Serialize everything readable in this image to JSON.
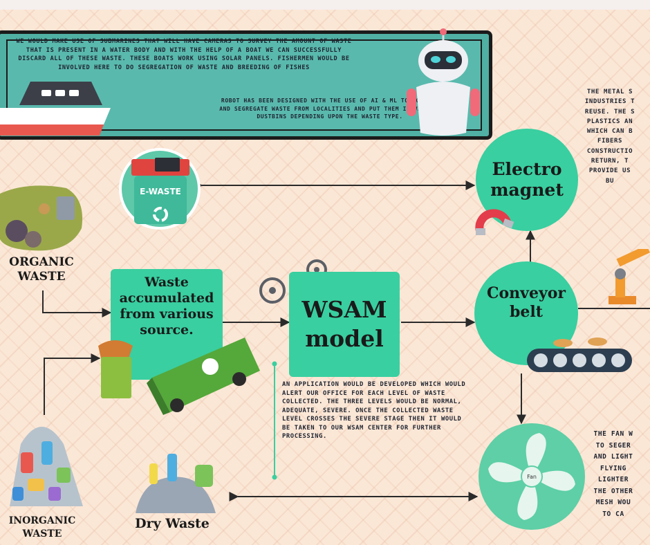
{
  "banner": {
    "boat_text": "WE WOULD MAKE USE OF SUBMARINES THAT WILL HAVE CAMERAS TO SURVEY THE AMOUNT OF WASTE THAT IS PRESENT IN A WATER BODY AND WITH THE HELP OF A BOAT WE CAN SUCCESSFULLY DISCARD ALL OF THESE WASTE. THESE BOATS WORK USING SOLAR PANELS. FISHERMEN WOULD BE INVOLVED HERE TO DO SEGREGATION OF WASTE AND BREEDING OF FISHES",
    "robot_text": "ROBOT HAS BEEN DESIGNED WITH THE USE OF AI & ML TO COLLECT AND SEGREGATE WASTE FROM LOCALITIES AND PUT THEM IN VARIOUS DUSTBINS DEPENDING UPON THE WASTE TYPE."
  },
  "nodes": {
    "ewaste_label": "E-WASTE",
    "electromagnet": "Electro magnet",
    "conveyor": "Conveyor belt",
    "wsam": "WSAM model",
    "accumulated": "Waste accumulated from various source.",
    "fan_label": "Fan"
  },
  "labels": {
    "organic": "ORGANIC WASTE",
    "inorganic": "INORGANIC WASTE",
    "dry": "Dry Waste"
  },
  "texts": {
    "metal": "THE METAL S\nINDUSTRIES T\nREUSE. THE S\nPLASTICS AN\nWHICH CAN B\nFIBERS\nCONSTRUCTIO\nRETURN, T\nPROVIDE US\nBU",
    "app": "AN APPLICATION WOULD BE DEVELOPED WHICH WOULD ALERT OUR OFFICE FOR EACH LEVEL OF WASTE COLLECTED. THE THREE LEVELS WOULD BE NORMAL, ADEQUATE, SEVERE. ONCE THE COLLECTED WASTE LEVEL CROSSES THE SEVERE STAGE THEN IT WOULD BE TAKEN TO OUR WSAM CENTER FOR FURTHER PROCESSING.",
    "fan": "THE FAN W\nTO SEGER\nAND LIGHT\nFLYING\nLIGHTER\nTHE OTHER\nMESH WOU\nTO CA"
  }
}
